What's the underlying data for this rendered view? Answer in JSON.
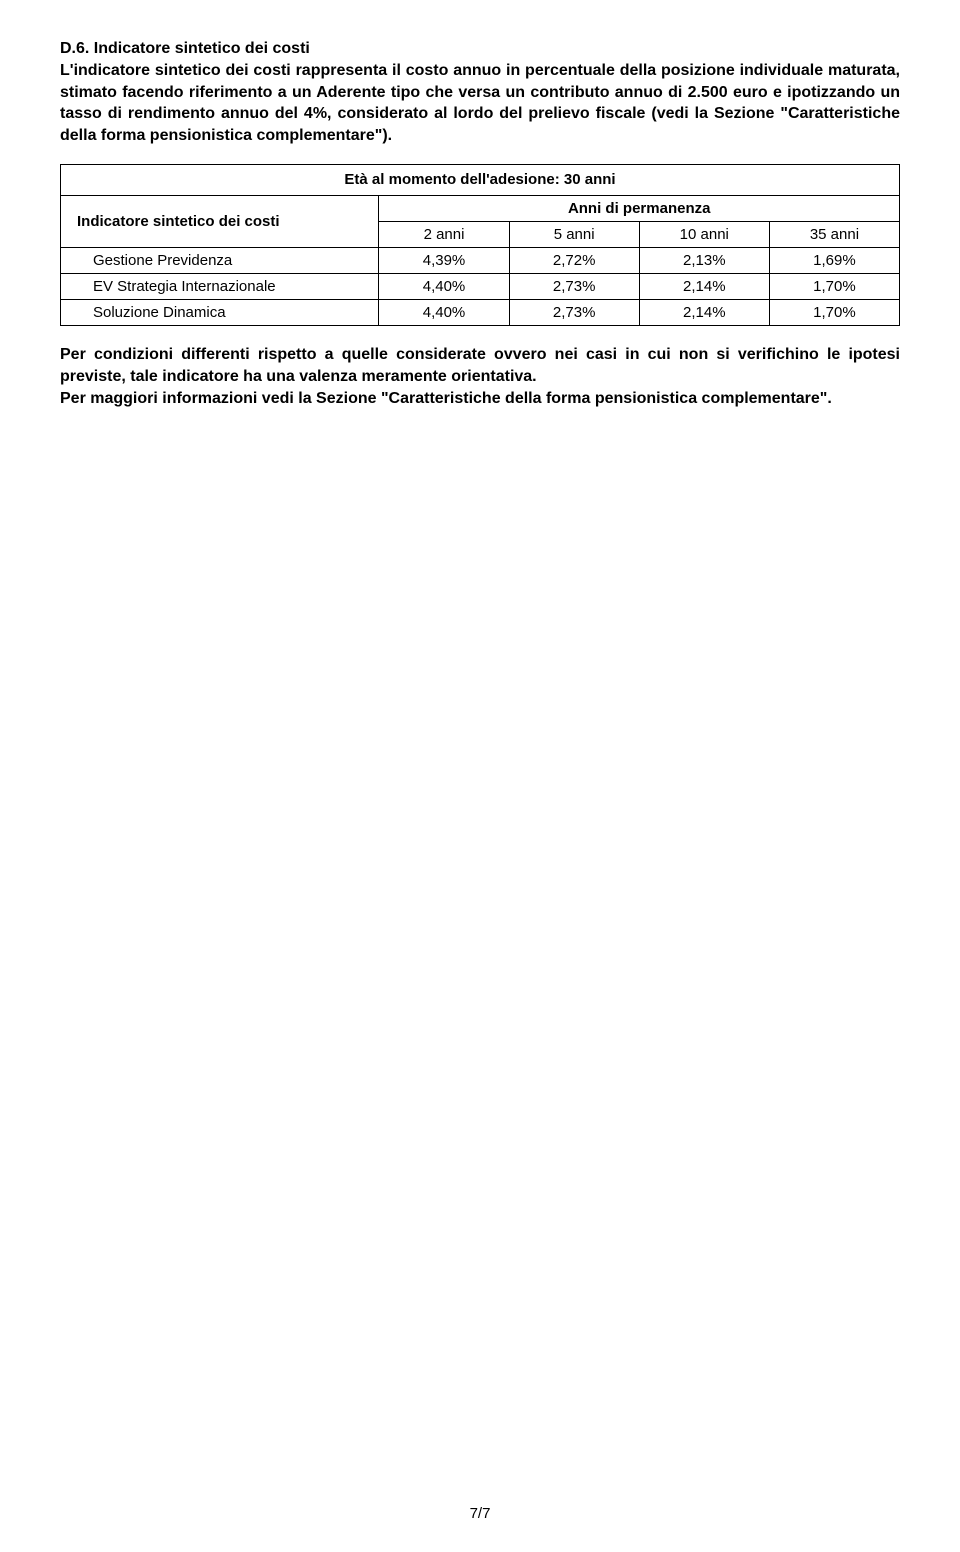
{
  "section": {
    "title": "D.6. Indicatore sintetico dei costi",
    "paragraph": "L'indicatore sintetico dei costi rappresenta il costo annuo in percentuale della posizione individuale maturata, stimato facendo riferimento a un Aderente tipo che versa un contributo annuo di 2.500 euro e ipotizzando un tasso di rendimento annuo del 4%, considerato al lordo del prelievo fiscale (vedi la Sezione \"Caratteristiche della forma pensionistica complementare\")."
  },
  "table": {
    "header": "Età al momento dell'adesione: 30 anni",
    "row_label": "Indicatore sintetico dei costi",
    "subheader": "Anni di permanenza",
    "years": [
      "2 anni",
      "5 anni",
      "10 anni",
      "35 anni"
    ],
    "rows": [
      {
        "label": "Gestione Previdenza",
        "values": [
          "4,39%",
          "2,72%",
          "2,13%",
          "1,69%"
        ]
      },
      {
        "label": "EV Strategia Internazionale",
        "values": [
          "4,40%",
          "2,73%",
          "2,14%",
          "1,70%"
        ]
      },
      {
        "label": "Soluzione Dinamica",
        "values": [
          "4,40%",
          "2,73%",
          "2,14%",
          "1,70%"
        ]
      }
    ],
    "border_color": "#000000",
    "background_color": "#ffffff",
    "fontsize": 15
  },
  "footer": {
    "p1": "Per condizioni differenti rispetto a quelle considerate ovvero nei casi in cui non si verifichino le ipotesi previste, tale indicatore ha una valenza meramente orientativa.",
    "p2": "Per maggiori informazioni vedi la Sezione \"Caratteristiche della forma pensionistica complementare\"."
  },
  "page_number": "7/7"
}
